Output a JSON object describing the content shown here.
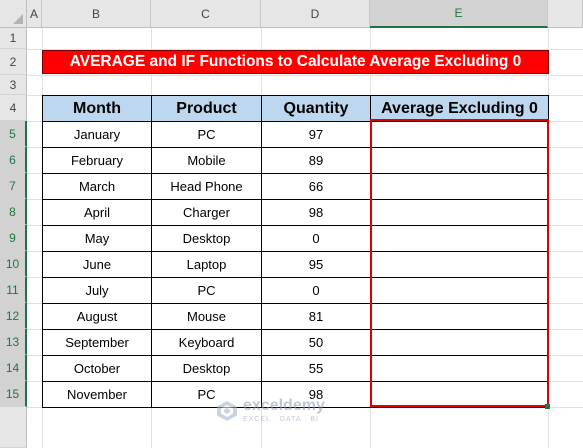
{
  "columns": [
    "A",
    "B",
    "C",
    "D",
    "E"
  ],
  "rows": [
    "1",
    "2",
    "3",
    "4",
    "5",
    "6",
    "7",
    "8",
    "9",
    "10",
    "11",
    "12",
    "13",
    "14",
    "15"
  ],
  "title": "AVERAGE and IF Functions to Calculate Average Excluding 0",
  "headers": {
    "month": "Month",
    "product": "Product",
    "quantity": "Quantity",
    "average": "Average Excluding 0"
  },
  "table": [
    {
      "month": "January",
      "product": "PC",
      "quantity": "97"
    },
    {
      "month": "February",
      "product": "Mobile",
      "quantity": "89"
    },
    {
      "month": "March",
      "product": "Head Phone",
      "quantity": "66"
    },
    {
      "month": "April",
      "product": "Charger",
      "quantity": "98"
    },
    {
      "month": "May",
      "product": "Desktop",
      "quantity": "0"
    },
    {
      "month": "June",
      "product": "Laptop",
      "quantity": "95"
    },
    {
      "month": "July",
      "product": "PC",
      "quantity": "0"
    },
    {
      "month": "August",
      "product": "Mouse",
      "quantity": "81"
    },
    {
      "month": "September",
      "product": "Keyboard",
      "quantity": "50"
    },
    {
      "month": "October",
      "product": "Desktop",
      "quantity": "55"
    },
    {
      "month": "November",
      "product": "PC",
      "quantity": "98"
    }
  ],
  "watermark": {
    "name": "exceldemy",
    "tagline": "EXCEL · DATA · BI"
  },
  "colors": {
    "title_bg": "#ff0000",
    "header_bg": "#bdd7ee",
    "selection": "#e00000",
    "excel_green": "#217346"
  }
}
